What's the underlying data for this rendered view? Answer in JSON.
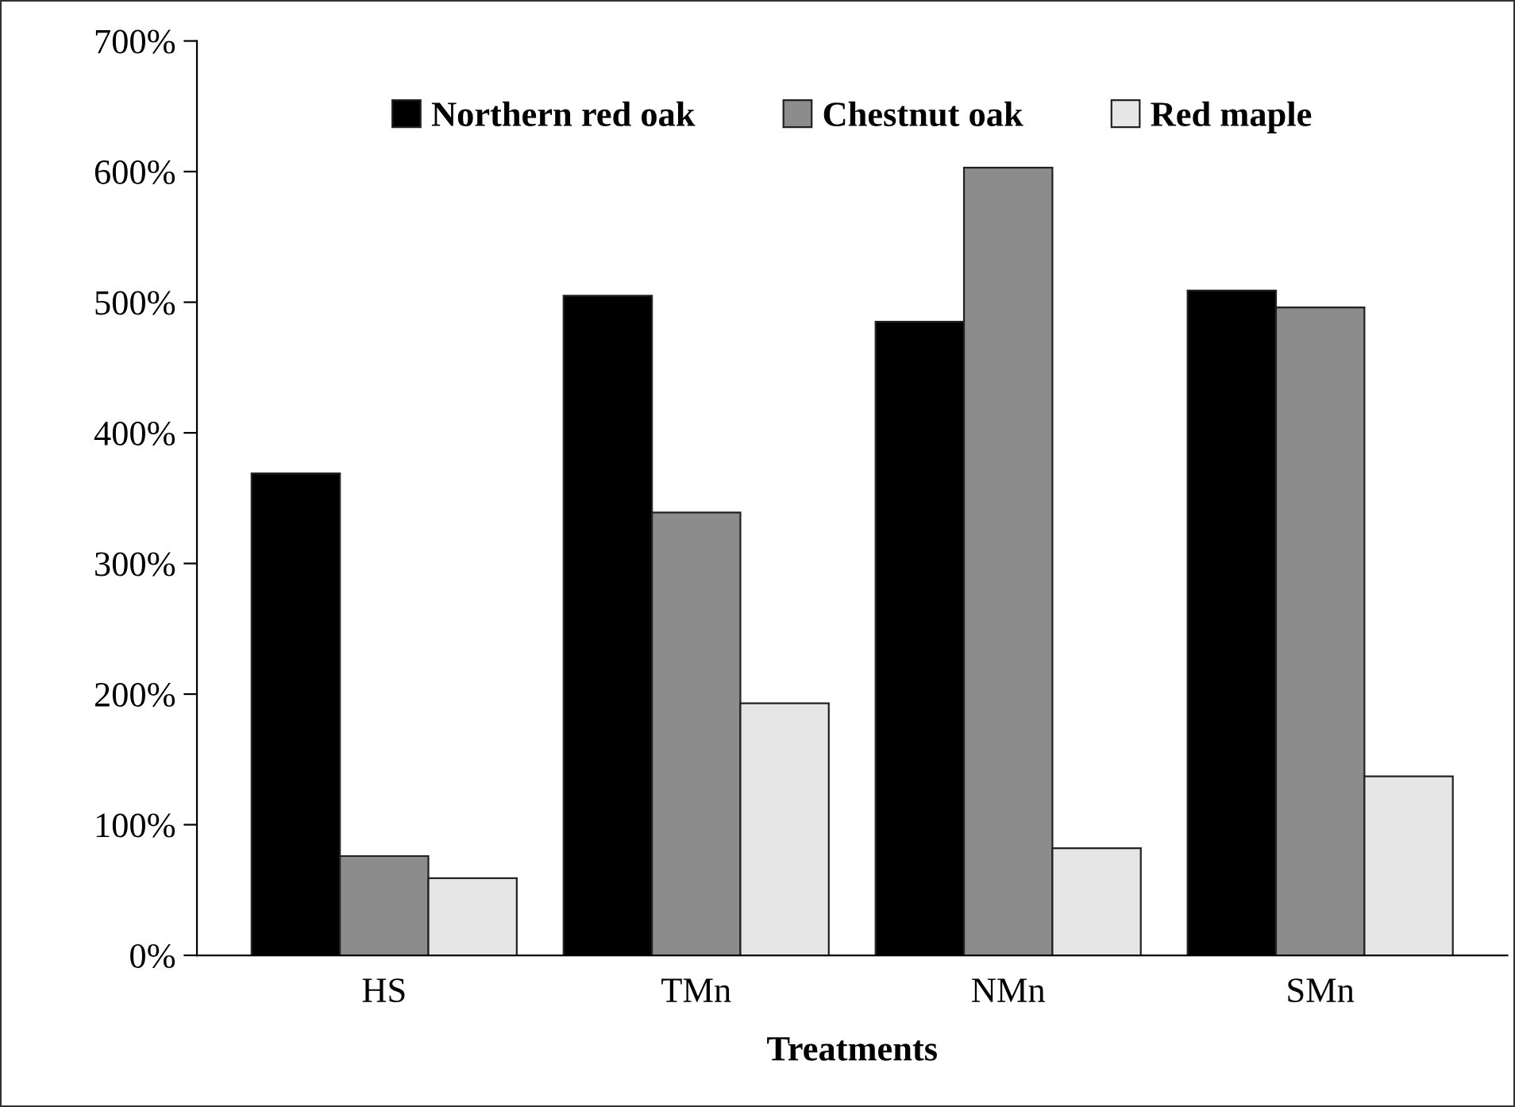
{
  "chart_data": {
    "type": "bar",
    "xlabel": "Treatments",
    "categories": [
      "HS",
      "TMn",
      "NMn",
      "SMn"
    ],
    "series": [
      {
        "name": "Northern red oak",
        "color": "#000000",
        "values": [
          369,
          505,
          485,
          509
        ]
      },
      {
        "name": "Chestnut oak",
        "color": "#8c8c8c",
        "values": [
          76,
          339,
          603,
          496
        ]
      },
      {
        "name": "Red maple",
        "color": "#e6e6e6",
        "values": [
          59,
          193,
          82,
          137
        ]
      }
    ],
    "ylim": [
      0,
      700
    ],
    "yticks": [
      {
        "value": 0,
        "label": "0%"
      },
      {
        "value": 100,
        "label": "100%"
      },
      {
        "value": 200,
        "label": "200%"
      },
      {
        "value": 300,
        "label": "300%"
      },
      {
        "value": 400,
        "label": "400%"
      },
      {
        "value": 500,
        "label": "500%"
      },
      {
        "value": 600,
        "label": "600%"
      },
      {
        "value": 700,
        "label": "700%"
      }
    ],
    "grid": false,
    "legend": "top"
  }
}
